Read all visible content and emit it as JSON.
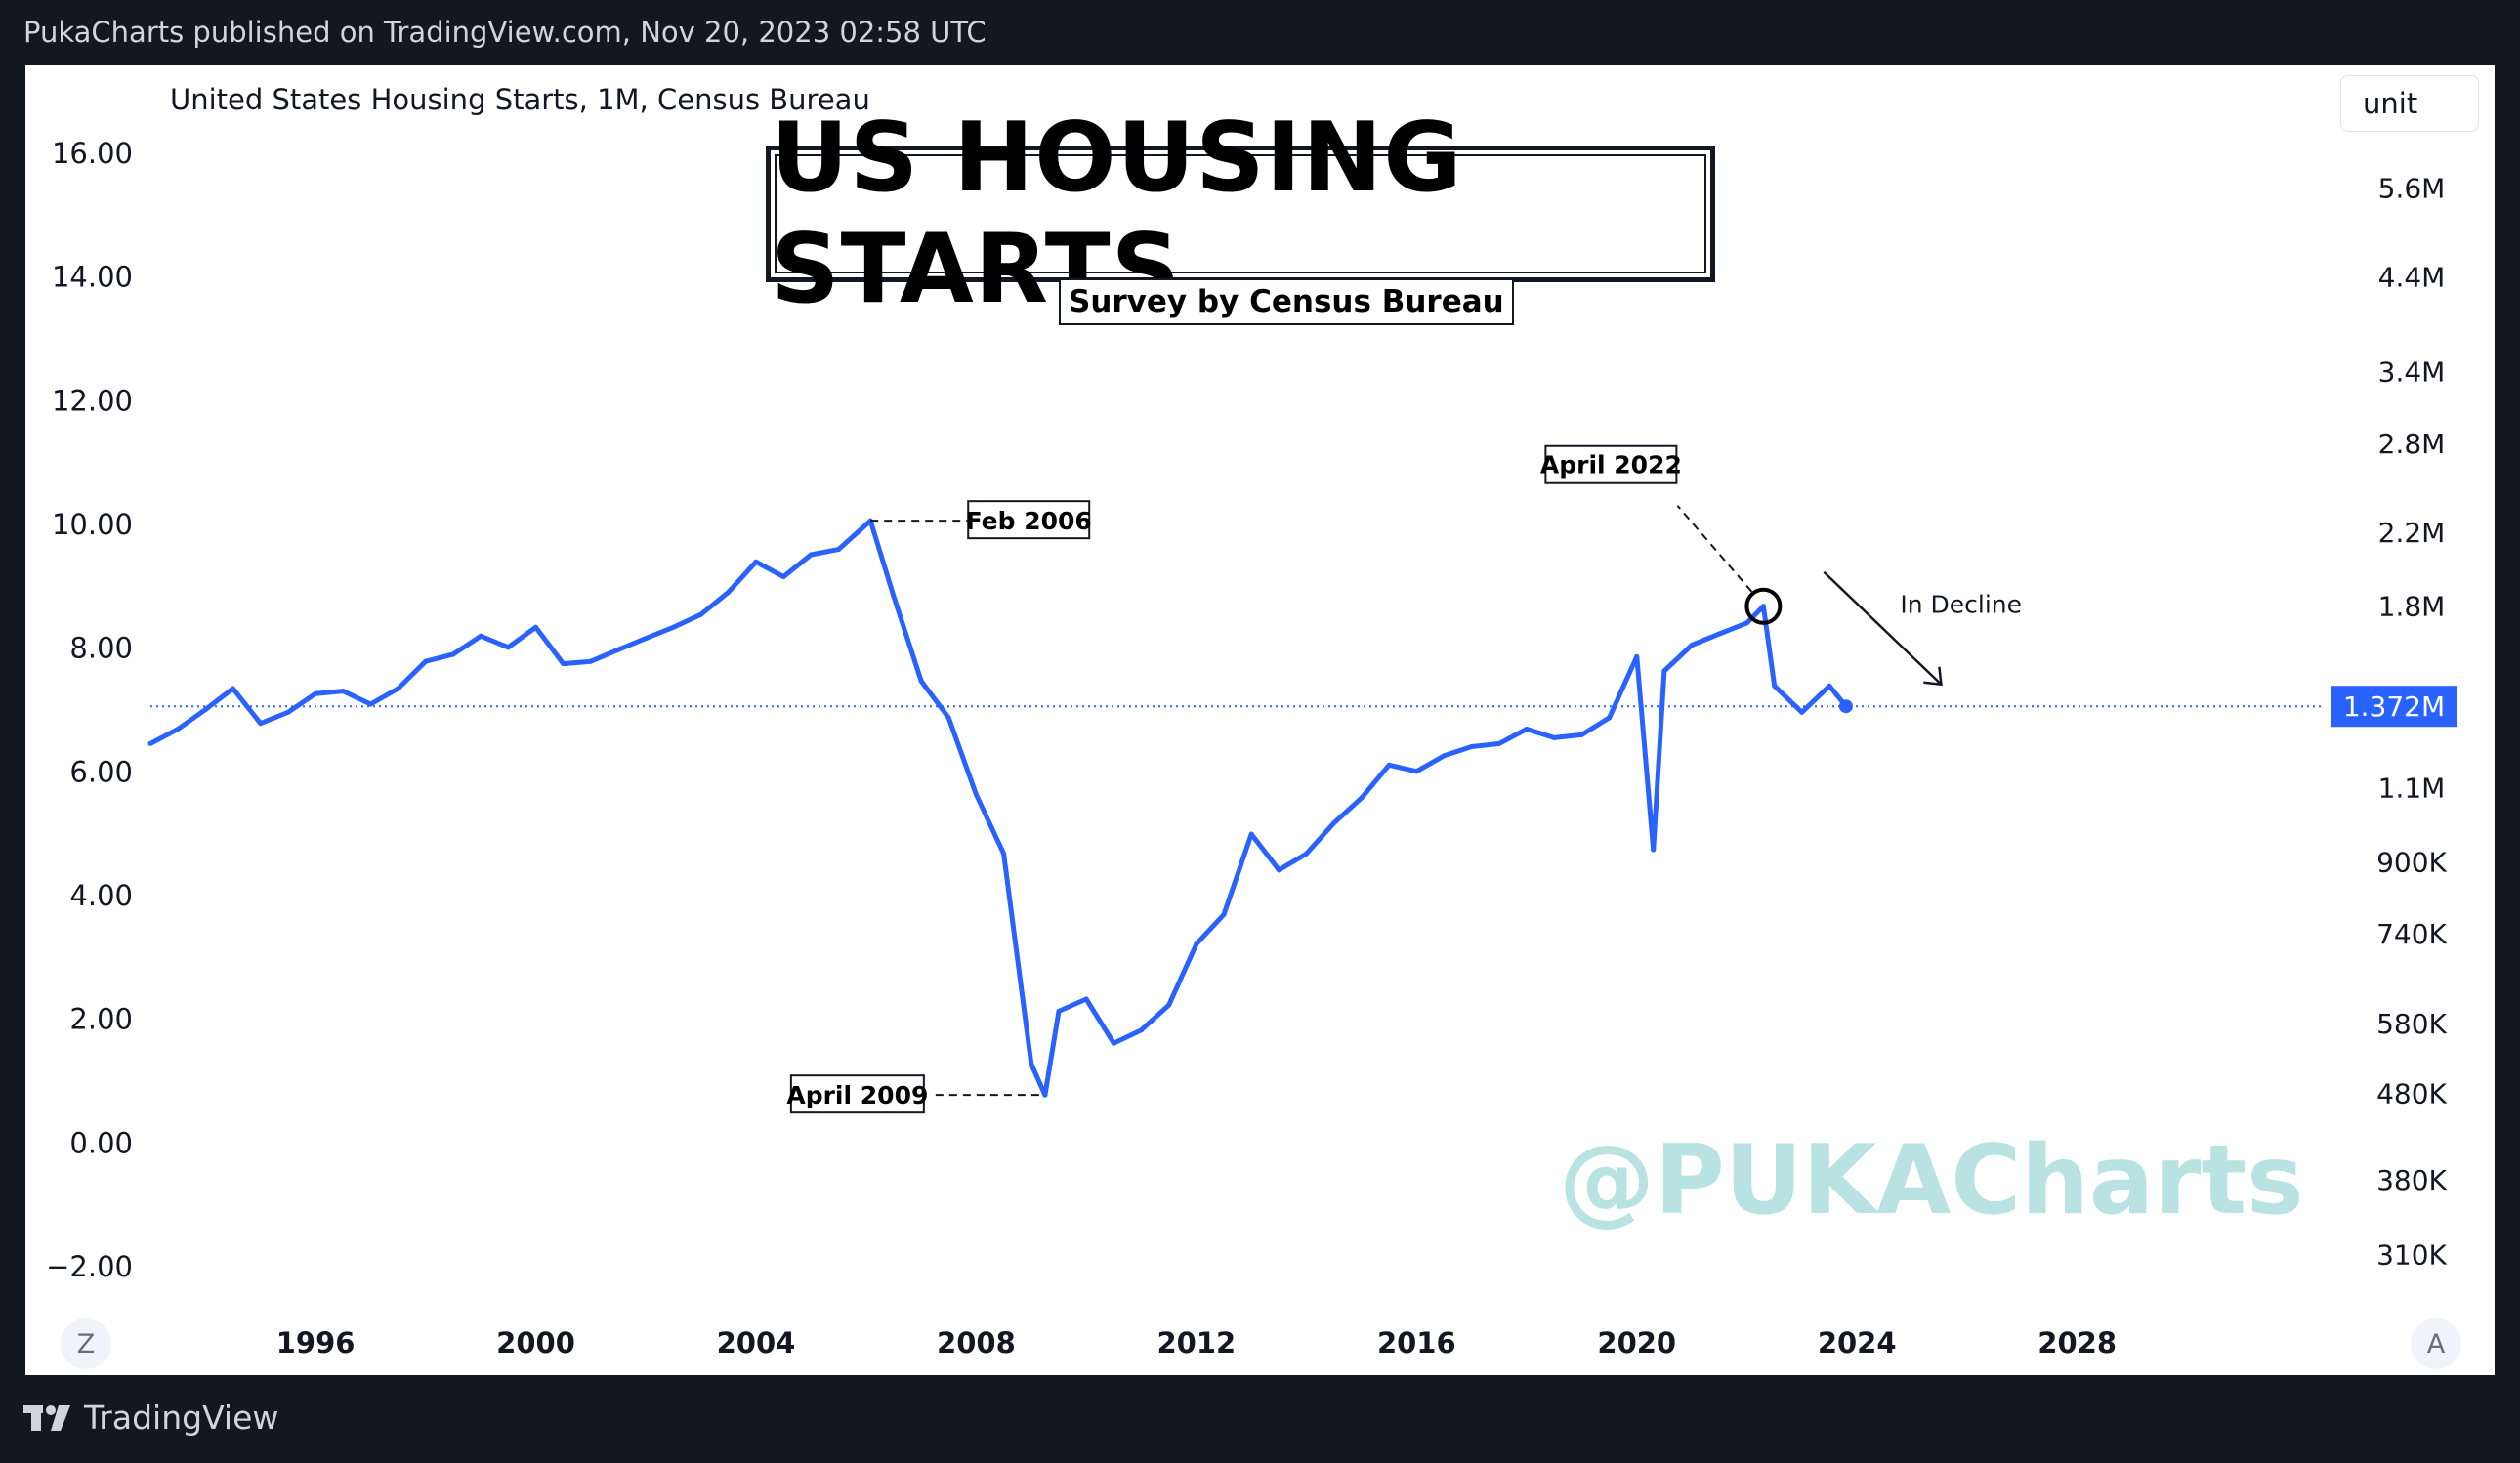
{
  "header": {
    "published": "PukaCharts published on TradingView.com, Nov 20, 2023 02:58 UTC"
  },
  "footer": {
    "brand": "TradingView",
    "logo_icon": "tradingview-logo-icon"
  },
  "chart_panel": {
    "symbol": "United States Housing Starts, 1M, Census Bureau",
    "unit_button": "unit",
    "title": "US HOUSING STARTS",
    "subtitle": "Survey by Census Bureau",
    "left_scale_button": "Z",
    "right_scale_button": "A",
    "watermark": "@PUKACharts"
  },
  "colors": {
    "line": "#2962ff",
    "price_label": "#2962ff",
    "background": "#ffffff",
    "frame": "#131722",
    "watermark": "#b8e3e2"
  },
  "chart_data": {
    "type": "line",
    "title": "US HOUSING STARTS",
    "subtitle": "Survey by Census Bureau",
    "series": [
      {
        "name": "United States Housing Starts",
        "x": [
          1993.0,
          1993.5,
          1994.0,
          1994.5,
          1995.0,
          1995.5,
          1996.0,
          1996.5,
          1997.0,
          1997.5,
          1998.0,
          1998.5,
          1999.0,
          1999.5,
          2000.0,
          2000.5,
          2001.0,
          2001.5,
          2002.0,
          2002.5,
          2003.0,
          2003.5,
          2004.0,
          2004.5,
          2005.0,
          2005.5,
          2006.08,
          2006.5,
          2007.0,
          2007.5,
          2008.0,
          2008.5,
          2009.0,
          2009.25,
          2009.5,
          2010.0,
          2010.5,
          2011.0,
          2011.5,
          2012.0,
          2012.5,
          2013.0,
          2013.5,
          2014.0,
          2014.5,
          2015.0,
          2015.5,
          2016.0,
          2016.5,
          2017.0,
          2017.5,
          2018.0,
          2018.5,
          2019.0,
          2019.5,
          2020.0,
          2020.3,
          2020.5,
          2021.0,
          2021.5,
          2022.0,
          2022.3,
          2022.5,
          2023.0,
          2023.5,
          2023.8
        ],
        "y": [
          1.24,
          1.29,
          1.36,
          1.44,
          1.31,
          1.35,
          1.42,
          1.43,
          1.38,
          1.44,
          1.55,
          1.58,
          1.66,
          1.61,
          1.7,
          1.54,
          1.55,
          1.6,
          1.65,
          1.7,
          1.76,
          1.87,
          2.03,
          1.95,
          2.07,
          2.1,
          2.27,
          1.85,
          1.47,
          1.33,
          1.08,
          0.92,
          0.52,
          0.478,
          0.6,
          0.62,
          0.55,
          0.57,
          0.61,
          0.72,
          0.78,
          0.97,
          0.88,
          0.92,
          1.0,
          1.07,
          1.17,
          1.15,
          1.2,
          1.23,
          1.24,
          1.29,
          1.26,
          1.27,
          1.33,
          1.57,
          0.93,
          1.51,
          1.62,
          1.67,
          1.72,
          1.8,
          1.45,
          1.35,
          1.45,
          1.372
        ]
      }
    ],
    "last_value_label": "1.372M",
    "left_axis": {
      "ticks": [
        "16.00",
        "14.00",
        "12.00",
        "10.00",
        "8.00",
        "6.00",
        "4.00",
        "2.00",
        "0.00",
        "−2.00"
      ],
      "ylim": [
        -2,
        16
      ]
    },
    "right_axis": {
      "scale": "log",
      "ticks": [
        "5.6M",
        "4.4M",
        "3.4M",
        "2.8M",
        "2.2M",
        "1.8M",
        "1.1M",
        "900K",
        "740K",
        "580K",
        "480K",
        "380K",
        "310K"
      ]
    },
    "x_axis": {
      "ticks": [
        "1996",
        "2000",
        "2004",
        "2008",
        "2012",
        "2016",
        "2020",
        "2024",
        "2028"
      ],
      "xlim": [
        1993,
        2033.4
      ]
    },
    "annotations": [
      {
        "text": "Feb 2006",
        "x": 2006.08,
        "y": 2.27
      },
      {
        "text": "April 2009",
        "x": 2009.25,
        "y": 0.478
      },
      {
        "text": "April 2022",
        "x": 2022.3,
        "y": 1.8
      },
      {
        "text": "In Decline",
        "x": 2023.4,
        "y": 1.8
      }
    ],
    "grid": false,
    "legend": "none"
  }
}
